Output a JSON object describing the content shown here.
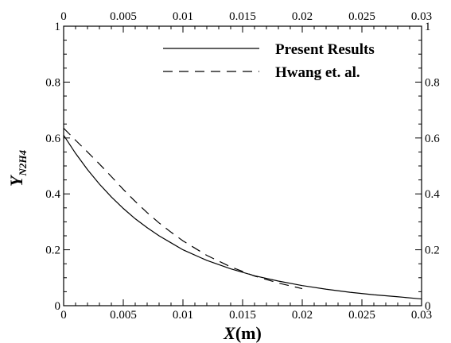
{
  "chart_data": {
    "type": "line",
    "xlabel": {
      "main": "X",
      "suffix": "(m)"
    },
    "ylabel": {
      "main": "Y",
      "subscript": "N2H4"
    },
    "xlim": [
      0,
      0.03
    ],
    "ylim": [
      0,
      1
    ],
    "x_ticks": [
      0,
      0.005,
      0.01,
      0.015,
      0.02,
      0.025,
      0.03
    ],
    "x_tick_labels": [
      "0",
      "0.005",
      "0.01",
      "0.015",
      "0.02",
      "0.025",
      "0.03"
    ],
    "y_ticks": [
      0,
      0.2,
      0.4,
      0.6,
      0.8,
      1
    ],
    "y_tick_labels": [
      "0",
      "0.2",
      "0.4",
      "0.6",
      "0.8",
      "1"
    ],
    "y_minor_step": 0.05,
    "x_minor_step": 0.001,
    "mirror_axes": true,
    "grid": false,
    "legend_position": "top-right",
    "series": [
      {
        "name": "Present Results",
        "style": "solid",
        "color": "#000000",
        "x": [
          0,
          0.001,
          0.002,
          0.003,
          0.004,
          0.005,
          0.006,
          0.007,
          0.008,
          0.009,
          0.01,
          0.012,
          0.014,
          0.016,
          0.018,
          0.02,
          0.022,
          0.024,
          0.026,
          0.028,
          0.03
        ],
        "y": [
          0.61,
          0.545,
          0.487,
          0.435,
          0.389,
          0.348,
          0.311,
          0.279,
          0.25,
          0.225,
          0.2,
          0.162,
          0.132,
          0.107,
          0.088,
          0.072,
          0.059,
          0.048,
          0.039,
          0.032,
          0.024
        ]
      },
      {
        "name": "Hwang et. al.",
        "style": "dashed",
        "color": "#000000",
        "x": [
          0,
          0.001,
          0.002,
          0.003,
          0.004,
          0.005,
          0.006,
          0.007,
          0.008,
          0.009,
          0.01,
          0.012,
          0.014,
          0.016,
          0.018,
          0.02
        ],
        "y": [
          0.635,
          0.592,
          0.55,
          0.507,
          0.462,
          0.416,
          0.373,
          0.333,
          0.296,
          0.263,
          0.232,
          0.18,
          0.139,
          0.106,
          0.081,
          0.061
        ]
      }
    ]
  }
}
